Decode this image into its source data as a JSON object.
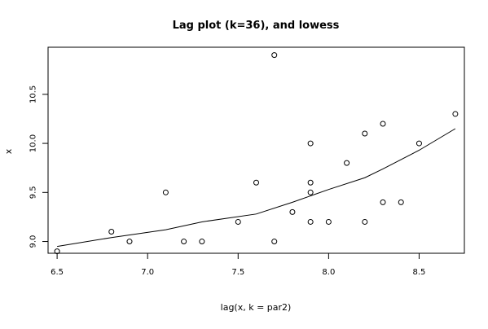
{
  "chart_data": {
    "type": "scatter",
    "title": "Lag plot (k=36), and lowess",
    "xlabel": "lag(x, k = par2)",
    "ylabel": "x",
    "xlim": [
      6.45,
      8.75
    ],
    "ylim": [
      8.88,
      10.98
    ],
    "xticks": [
      6.5,
      7.0,
      7.5,
      8.0,
      8.5
    ],
    "yticks": [
      9.0,
      9.5,
      10.0,
      10.5
    ],
    "xtick_labels": [
      "6.5",
      "7.0",
      "7.5",
      "8.0",
      "8.5"
    ],
    "ytick_labels": [
      "9.0",
      "9.5",
      "10.0",
      "10.5"
    ],
    "grid": false,
    "legend": "none",
    "series": [
      {
        "kind": "points",
        "marker": "open-circle",
        "color": "#000000",
        "points": [
          {
            "x": 6.5,
            "y": 8.9
          },
          {
            "x": 6.8,
            "y": 9.1
          },
          {
            "x": 6.9,
            "y": 9.0
          },
          {
            "x": 7.1,
            "y": 9.5
          },
          {
            "x": 7.2,
            "y": 9.0
          },
          {
            "x": 7.3,
            "y": 9.0
          },
          {
            "x": 7.5,
            "y": 9.2
          },
          {
            "x": 7.6,
            "y": 9.6
          },
          {
            "x": 7.7,
            "y": 10.9
          },
          {
            "x": 7.7,
            "y": 9.0
          },
          {
            "x": 7.8,
            "y": 9.3
          },
          {
            "x": 7.9,
            "y": 10.0
          },
          {
            "x": 7.9,
            "y": 9.6
          },
          {
            "x": 7.9,
            "y": 9.5
          },
          {
            "x": 7.9,
            "y": 9.2
          },
          {
            "x": 8.0,
            "y": 9.2
          },
          {
            "x": 8.1,
            "y": 9.8
          },
          {
            "x": 8.2,
            "y": 10.1
          },
          {
            "x": 8.2,
            "y": 9.2
          },
          {
            "x": 8.3,
            "y": 10.2
          },
          {
            "x": 8.3,
            "y": 9.4
          },
          {
            "x": 8.4,
            "y": 9.4
          },
          {
            "x": 8.5,
            "y": 10.0
          },
          {
            "x": 8.7,
            "y": 10.3
          }
        ]
      },
      {
        "kind": "line",
        "color": "#000000",
        "points": [
          {
            "x": 6.5,
            "y": 8.95
          },
          {
            "x": 6.8,
            "y": 9.04
          },
          {
            "x": 7.1,
            "y": 9.12
          },
          {
            "x": 7.3,
            "y": 9.2
          },
          {
            "x": 7.6,
            "y": 9.28
          },
          {
            "x": 7.8,
            "y": 9.4
          },
          {
            "x": 8.0,
            "y": 9.53
          },
          {
            "x": 8.2,
            "y": 9.65
          },
          {
            "x": 8.3,
            "y": 9.74
          },
          {
            "x": 8.5,
            "y": 9.93
          },
          {
            "x": 8.7,
            "y": 10.15
          }
        ]
      }
    ]
  }
}
